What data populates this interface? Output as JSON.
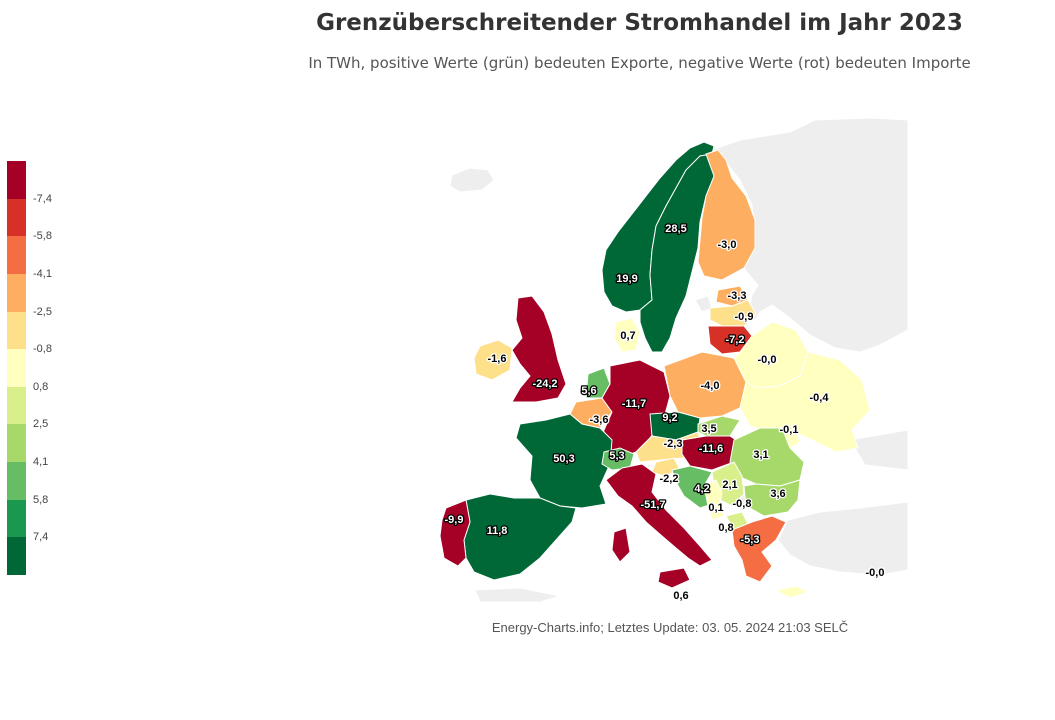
{
  "title": "Grenzüberschreitender Stromhandel im Jahr 2023",
  "subtitle": "In TWh, positive Werte (grün) bedeuten Exporte, negative Werte (rot) bedeuten Importe",
  "credit": "Energy-Charts.info; Letztes Update: 03. 05. 2024 21:03 SELČ",
  "legend": {
    "ticks": [
      "-7,4",
      "-5,8",
      "-4,1",
      "-2,5",
      "-0,8",
      "0,8",
      "2,5",
      "4,1",
      "5,8",
      "7,4"
    ],
    "colors": [
      "#a50026",
      "#d73027",
      "#f46d43",
      "#fdae61",
      "#fee08b",
      "#ffffbf",
      "#d9ef8b",
      "#a6d96a",
      "#66bd63",
      "#1a9850",
      "#006837"
    ]
  },
  "countries": [
    {
      "id": "NO",
      "value": "19,9"
    },
    {
      "id": "SE",
      "value": "28,5"
    },
    {
      "id": "FI",
      "value": "-3,0"
    },
    {
      "id": "EE",
      "value": "-3,3"
    },
    {
      "id": "LV",
      "value": "-0,9"
    },
    {
      "id": "LT",
      "value": "-7,2"
    },
    {
      "id": "DK",
      "value": "0,7"
    },
    {
      "id": "IE",
      "value": "-1,6"
    },
    {
      "id": "GB",
      "value": "-24,2"
    },
    {
      "id": "NL",
      "value": "5,6"
    },
    {
      "id": "BE",
      "value": "-3,6"
    },
    {
      "id": "DE",
      "value": "-11,7"
    },
    {
      "id": "PL",
      "value": "-4,0"
    },
    {
      "id": "BY",
      "value": "-0,0"
    },
    {
      "id": "UA",
      "value": "-0,4"
    },
    {
      "id": "CZ",
      "value": "9,2"
    },
    {
      "id": "SK",
      "value": "3,5"
    },
    {
      "id": "MD",
      "value": "-0,1"
    },
    {
      "id": "FR",
      "value": "50,3"
    },
    {
      "id": "CH",
      "value": "5,3"
    },
    {
      "id": "AT",
      "value": "-2,3"
    },
    {
      "id": "HU",
      "value": "-11,6"
    },
    {
      "id": "RO",
      "value": "3,1"
    },
    {
      "id": "SI",
      "value": "-2,2"
    },
    {
      "id": "HR",
      "value": "4,2"
    },
    {
      "id": "RS",
      "value": "2,1"
    },
    {
      "id": "BG",
      "value": "3,6"
    },
    {
      "id": "BA",
      "value": "-0,8"
    },
    {
      "id": "ME",
      "value": "0,1"
    },
    {
      "id": "MK",
      "value": "0,8"
    },
    {
      "id": "GR",
      "value": "-5,3"
    },
    {
      "id": "IT",
      "value": "-51,7"
    },
    {
      "id": "ES",
      "value": "11,8"
    },
    {
      "id": "PT",
      "value": "-9,9"
    },
    {
      "id": "TR",
      "value": "-0,0"
    },
    {
      "id": "MT",
      "value": "0,6"
    }
  ]
}
